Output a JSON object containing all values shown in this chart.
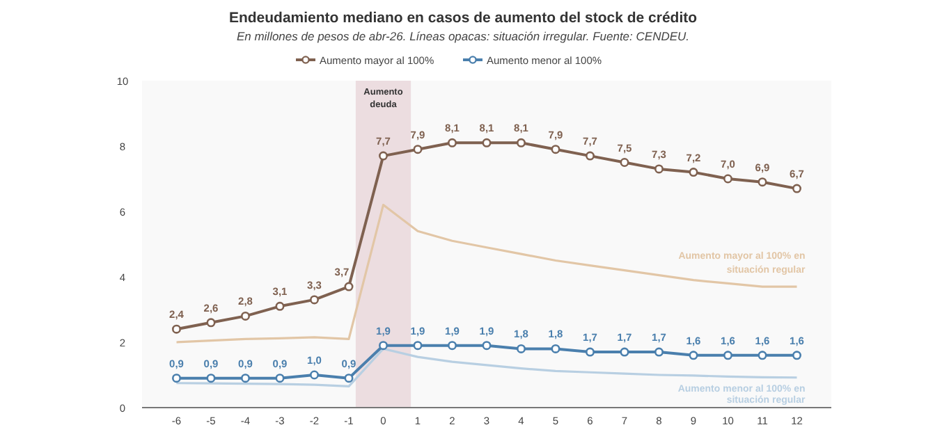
{
  "chart_data": {
    "type": "line",
    "title": "Endeudamiento  mediano en casos de aumento del stock de crédito",
    "subtitle": "En millones de pesos de abr-26. Líneas opacas: situación irregular. Fuente: CENDEU.",
    "x": [
      -6,
      -5,
      -4,
      -3,
      -2,
      -1,
      0,
      1,
      2,
      3,
      4,
      5,
      6,
      7,
      8,
      9,
      10,
      11,
      12
    ],
    "xlim": [
      -7,
      13
    ],
    "xticks": [
      -6,
      -5,
      -4,
      -3,
      -2,
      -1,
      0,
      1,
      2,
      3,
      4,
      5,
      6,
      7,
      8,
      9,
      10,
      11,
      12
    ],
    "ylim": [
      0,
      10
    ],
    "yticks": [
      0,
      2,
      4,
      6,
      8,
      10
    ],
    "grid": false,
    "legend": "top",
    "bands": [
      {
        "axis": "x",
        "from": -0.8,
        "to": 0.8,
        "label": "Aumento deuda",
        "color": "#ecdde0"
      }
    ],
    "series": [
      {
        "name": "Aumento mayor al 100%",
        "color": "#7f6150",
        "marker": "circle",
        "values": [
          2.4,
          2.6,
          2.8,
          3.1,
          3.3,
          3.7,
          7.7,
          7.9,
          8.1,
          8.1,
          8.1,
          7.9,
          7.7,
          7.5,
          7.3,
          7.2,
          7.0,
          6.9,
          6.7
        ],
        "value_labels": [
          "2,4",
          "2,6",
          "2,8",
          "3,1",
          "3,3",
          "3,7",
          "7,7",
          "7,9",
          "8,1",
          "8,1",
          "8,1",
          "7,9",
          "7,7",
          "7,5",
          "7,3",
          "7,2",
          "7,0",
          "6,9",
          "6,7"
        ]
      },
      {
        "name": "Aumento menor al 100%",
        "color": "#4a7fad",
        "marker": "circle",
        "values": [
          0.9,
          0.9,
          0.9,
          0.9,
          1.0,
          0.9,
          1.9,
          1.9,
          1.9,
          1.9,
          1.8,
          1.8,
          1.7,
          1.7,
          1.7,
          1.6,
          1.6,
          1.6,
          1.6
        ],
        "value_labels": [
          "0,9",
          "0,9",
          "0,9",
          "0,9",
          "1,0",
          "0,9",
          "1,9",
          "1,9",
          "1,9",
          "1,9",
          "1,8",
          "1,8",
          "1,7",
          "1,7",
          "1,7",
          "1,6",
          "1,6",
          "1,6",
          "1,6"
        ]
      },
      {
        "name": "Aumento mayor al 100% en situación regular",
        "color": "#e2c6a6",
        "marker": "none",
        "values": [
          2.0,
          2.05,
          2.1,
          2.12,
          2.15,
          2.1,
          6.2,
          5.4,
          5.1,
          4.9,
          4.7,
          4.5,
          4.35,
          4.2,
          4.05,
          3.9,
          3.8,
          3.7,
          3.7
        ]
      },
      {
        "name": "Aumento menor al 100% en situación regular",
        "color": "#b8cfe2",
        "marker": "none",
        "values": [
          0.75,
          0.74,
          0.73,
          0.72,
          0.7,
          0.65,
          1.8,
          1.55,
          1.4,
          1.3,
          1.2,
          1.12,
          1.08,
          1.04,
          1.0,
          0.98,
          0.95,
          0.93,
          0.92
        ]
      }
    ]
  }
}
